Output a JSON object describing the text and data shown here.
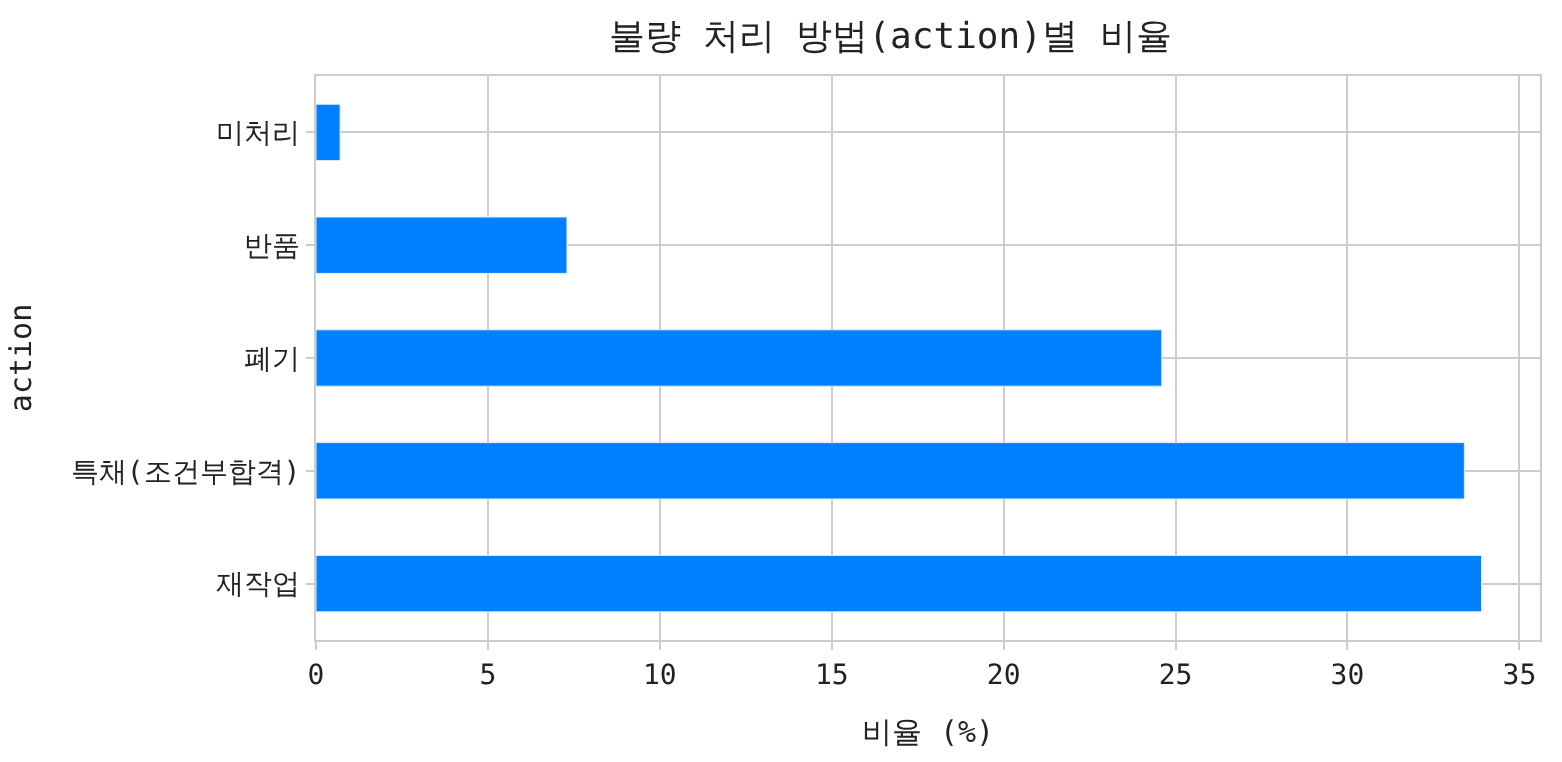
{
  "chart_data": {
    "type": "bar",
    "orientation": "horizontal",
    "title": "불량 처리 방법(action)별 비율",
    "xlabel": "비율 (%)",
    "ylabel": "action",
    "categories": [
      "미처리",
      "반품",
      "폐기",
      "특채(조건부합격)",
      "재작업"
    ],
    "values": [
      0.7,
      7.3,
      24.6,
      33.4,
      33.9
    ],
    "color": "#0080ff",
    "xlim": [
      0,
      35.6
    ],
    "xticks": [
      0,
      5,
      10,
      15,
      20,
      25,
      30,
      35
    ],
    "grid": true,
    "legend": false
  }
}
